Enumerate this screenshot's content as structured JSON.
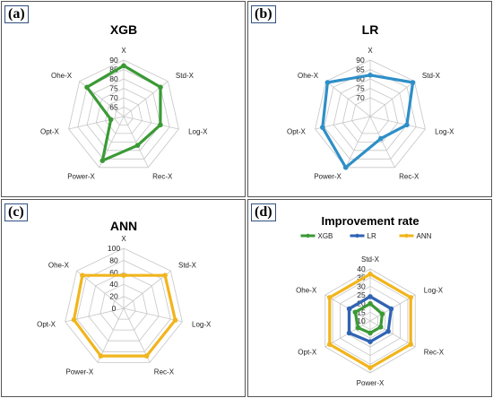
{
  "panel_labels": [
    "(a)",
    "(b)",
    "(c)",
    "(d)"
  ],
  "chart_data": [
    {
      "type": "radar",
      "title": "XGB",
      "axes": [
        "X",
        "Std-X",
        "Log-X",
        "Rec-X",
        "Power-X",
        "Opt-X",
        "Ohe-X"
      ],
      "ticks": [
        65,
        70,
        75,
        80,
        85,
        90
      ],
      "range": [
        60,
        90
      ],
      "series": [
        {
          "values": [
            87,
            85,
            80,
            77,
            86,
            67,
            85
          ],
          "color": "#3a9a35"
        }
      ]
    },
    {
      "type": "radar",
      "title": "LR",
      "axes": [
        "X",
        "Std-X",
        "Log-X",
        "Rec-X",
        "Power-X",
        "Opt-X",
        "Ohe-X"
      ],
      "ticks": [
        70,
        75,
        80,
        85,
        90
      ],
      "range": [
        60,
        90
      ],
      "series": [
        {
          "values": [
            82,
            89,
            80,
            73,
            90,
            86,
            89
          ],
          "color": "#2e8fc8"
        }
      ]
    },
    {
      "type": "radar",
      "title": "ANN",
      "axes": [
        "X",
        "Std-X",
        "Log-X",
        "Rec-X",
        "Power-X",
        "Opt-X",
        "Ohe-X"
      ],
      "ticks": [
        0,
        20,
        40,
        60,
        80,
        100
      ],
      "range": [
        0,
        100
      ],
      "series": [
        {
          "values": [
            55,
            88,
            88,
            88,
            88,
            85,
            88
          ],
          "color": "#f1b51c"
        }
      ]
    },
    {
      "type": "radar",
      "title": "Improvement rate",
      "axes": [
        "Std-X",
        "Log-X",
        "Rec-X",
        "Power-X",
        "Opt-X",
        "Ohe-X"
      ],
      "ticks": [
        10,
        15,
        20,
        25,
        30,
        35,
        40
      ],
      "range": [
        10,
        40
      ],
      "legend_position": "top",
      "series": [
        {
          "name": "XGB",
          "values": [
            20,
            18,
            17,
            17,
            18,
            20
          ],
          "color": "#3a9a35"
        },
        {
          "name": "LR",
          "values": [
            24,
            24,
            22,
            22,
            24,
            24
          ],
          "color": "#2e63b4"
        },
        {
          "name": "ANN",
          "values": [
            37,
            37,
            37,
            37,
            37,
            37
          ],
          "color": "#f1b51c"
        }
      ]
    }
  ]
}
